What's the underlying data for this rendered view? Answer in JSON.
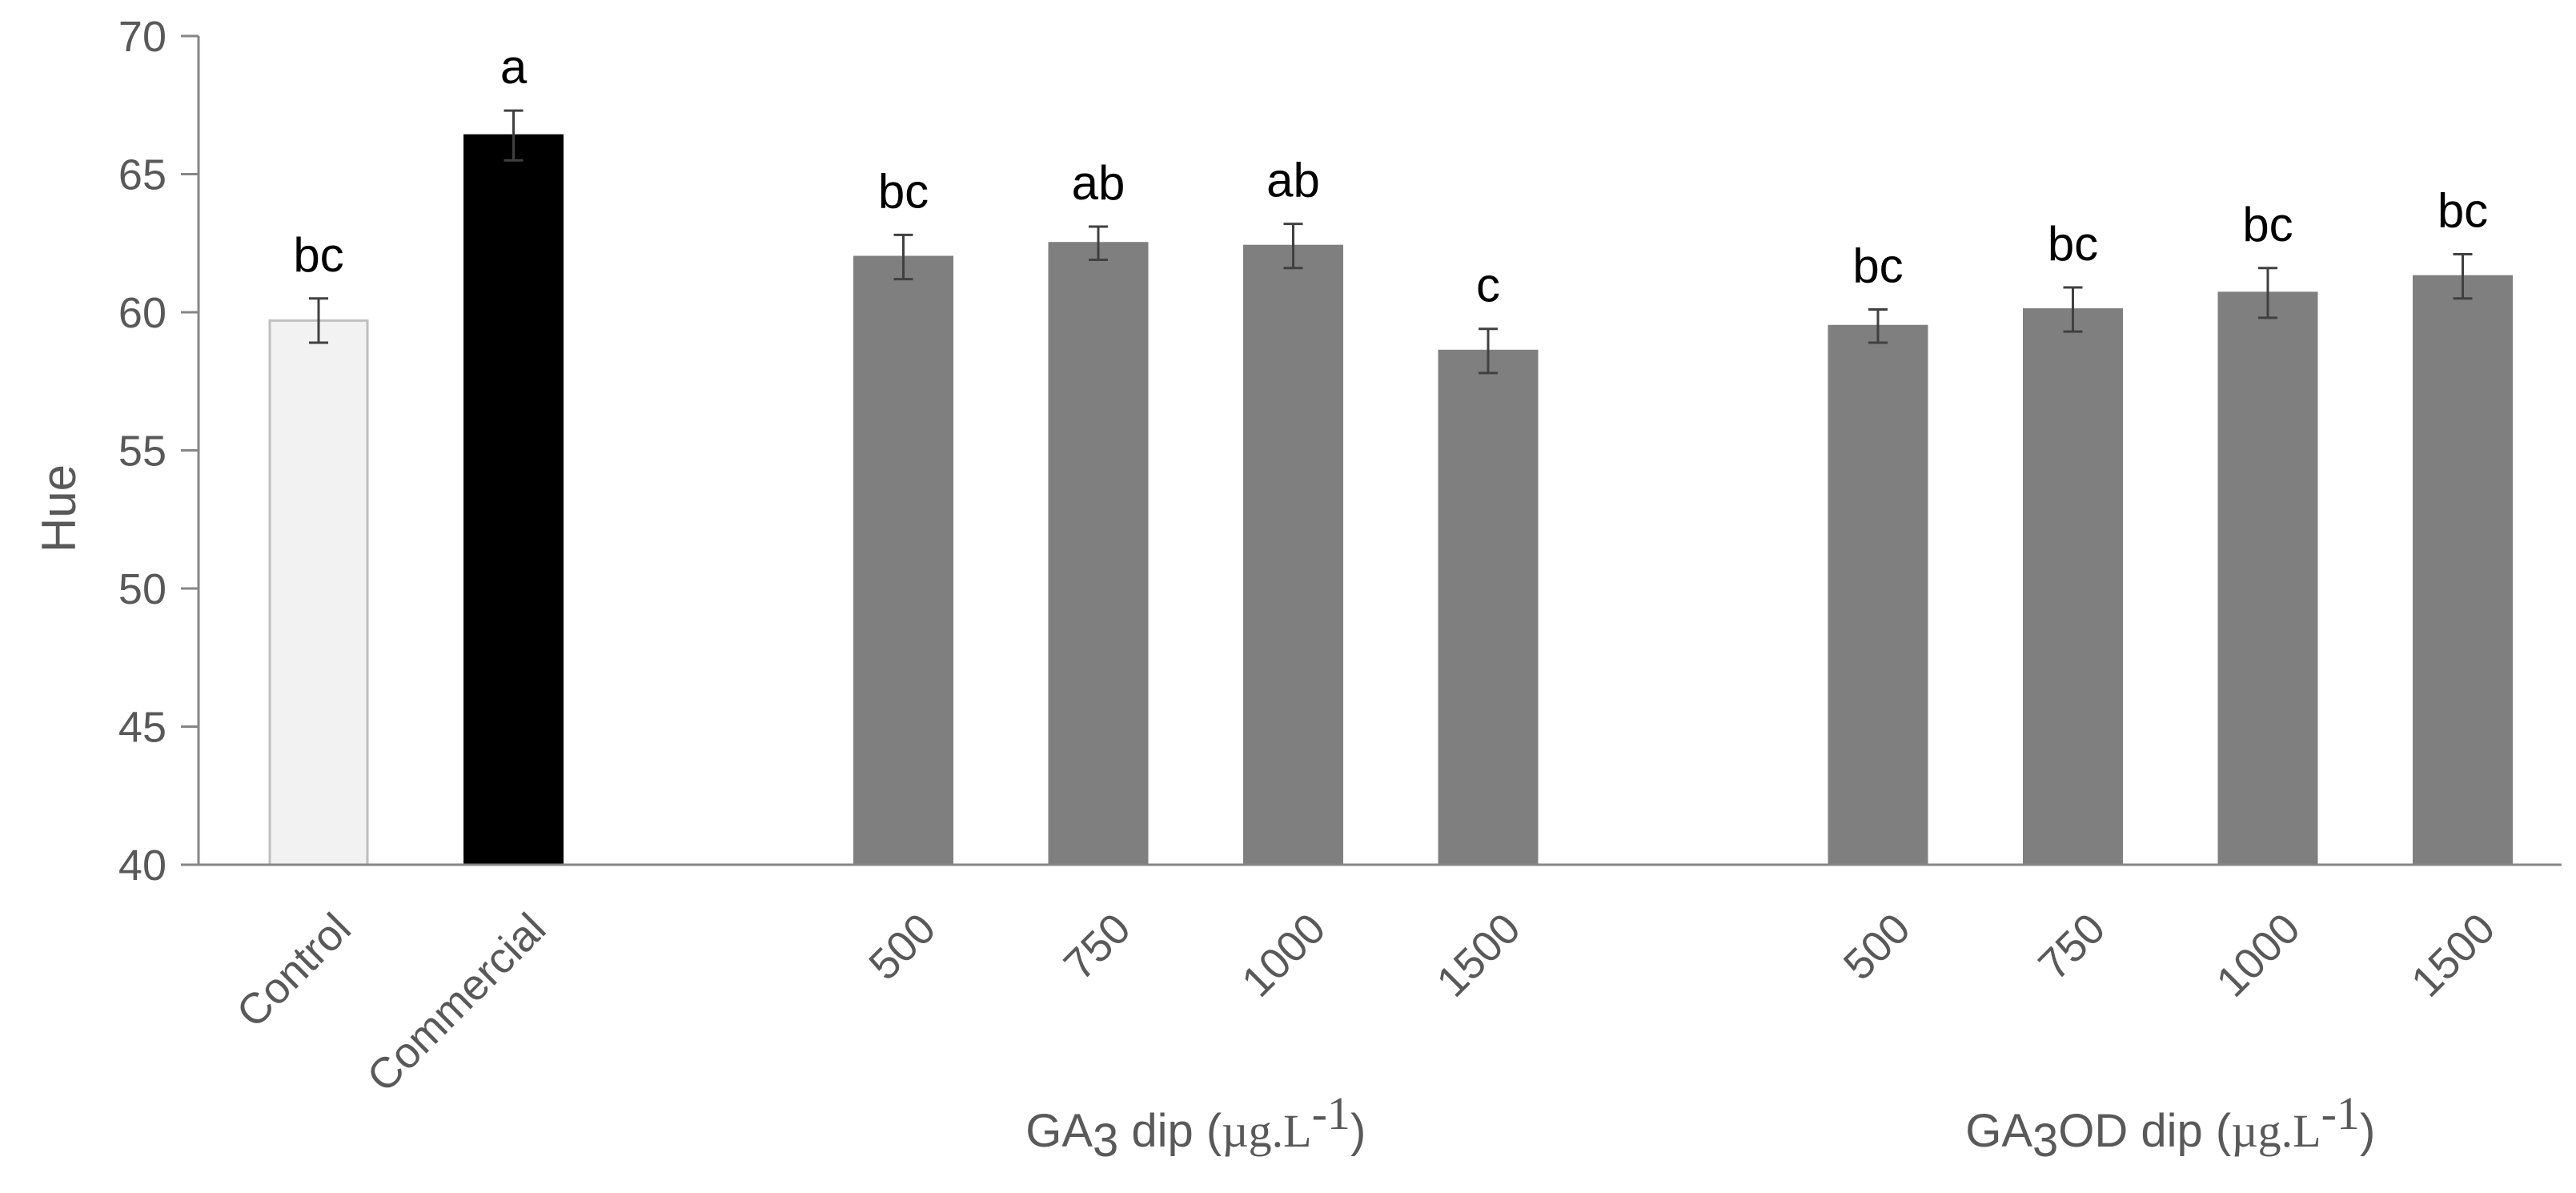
{
  "chart_data": {
    "type": "bar",
    "title": "",
    "ylabel": "Hue",
    "ylim": [
      40,
      70
    ],
    "yticks": [
      40,
      45,
      50,
      55,
      60,
      65,
      70
    ],
    "grid": false,
    "categories": [
      "Control",
      "Commercial",
      "500",
      "750",
      "1000",
      "1500",
      "500",
      "750",
      "1000",
      "1500"
    ],
    "values": [
      59.7,
      66.4,
      62.0,
      62.5,
      62.4,
      58.6,
      59.5,
      60.1,
      60.7,
      61.3
    ],
    "errors": [
      0.8,
      0.9,
      0.8,
      0.6,
      0.8,
      0.8,
      0.6,
      0.8,
      0.9,
      0.8
    ],
    "significance": [
      "bc",
      "a",
      "bc",
      "ab",
      "ab",
      "c",
      "bc",
      "bc",
      "bc",
      "bc"
    ],
    "bar_colors": [
      "#f2f2f2",
      "#000000",
      "#7f7f7f",
      "#7f7f7f",
      "#7f7f7f",
      "#7f7f7f",
      "#7f7f7f",
      "#7f7f7f",
      "#7f7f7f",
      "#7f7f7f"
    ],
    "groups": [
      {
        "prefix": "GA",
        "sub": "3",
        "suffix": " dip (",
        "unit": "µg.L",
        "sup": "-1",
        "close": ")",
        "members": [
          2,
          3,
          4,
          5
        ]
      },
      {
        "prefix": "GA",
        "sub": "3",
        "suffix": "OD dip (",
        "unit": "µg.L",
        "sup": "-1",
        "close": ")",
        "members": [
          6,
          7,
          8,
          9
        ]
      }
    ]
  }
}
